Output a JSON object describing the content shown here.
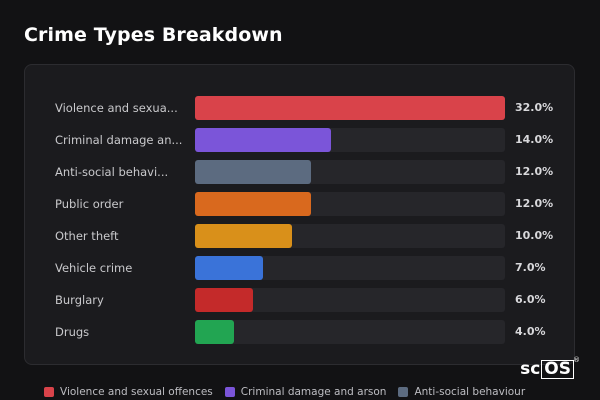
{
  "title": "Crime Types Breakdown",
  "logo": {
    "prefix": "sc",
    "boxed": "OS",
    "reg": "®"
  },
  "chart_data": {
    "type": "bar",
    "orientation": "horizontal",
    "categories": [
      "Violence and sexua...",
      "Criminal damage an...",
      "Anti-social behavi...",
      "Public order",
      "Other theft",
      "Vehicle crime",
      "Burglary",
      "Drugs"
    ],
    "values": [
      32.0,
      14.0,
      12.0,
      12.0,
      10.0,
      7.0,
      6.0,
      4.0
    ],
    "value_labels": [
      "32.0%",
      "14.0%",
      "12.0%",
      "12.0%",
      "10.0%",
      "7.0%",
      "6.0%",
      "4.0%"
    ],
    "colors": [
      "#d9434a",
      "#7b55d9",
      "#5c6b80",
      "#d9691e",
      "#d9901a",
      "#3a73d9",
      "#c42a2a",
      "#22a552"
    ],
    "xlim": [
      0,
      32
    ],
    "legend": {
      "placement": "bottom",
      "entries": [
        {
          "name": "Violence and sexual offences",
          "color": "#d9434a"
        },
        {
          "name": "Criminal damage and arson",
          "color": "#7b55d9"
        },
        {
          "name": "Anti-social behaviour",
          "color": "#5c6b80"
        }
      ]
    }
  }
}
